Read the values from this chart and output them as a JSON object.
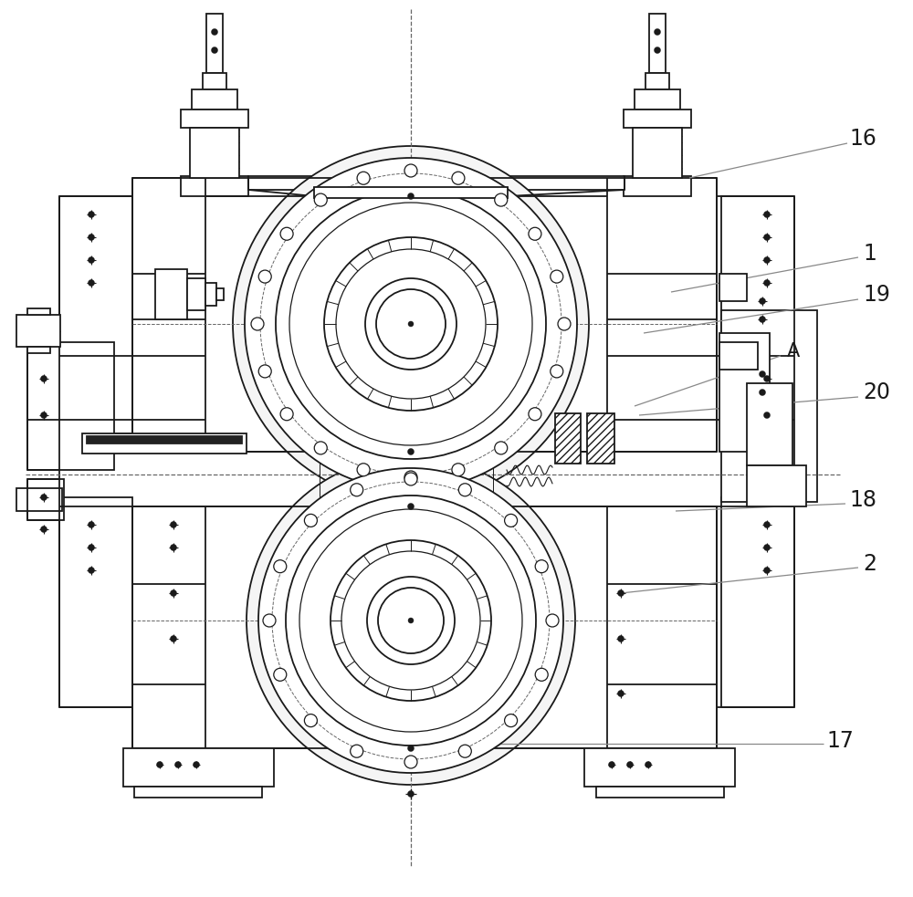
{
  "bg_color": "#ffffff",
  "lc": "#1a1a1a",
  "lw": 1.3,
  "tlw": 0.8,
  "clc": "#666666",
  "labels": [
    [
      "16",
      930,
      152,
      17
    ],
    [
      "1",
      945,
      278,
      17
    ],
    [
      "19",
      945,
      323,
      17
    ],
    [
      "A",
      862,
      385,
      15
    ],
    [
      "20",
      945,
      430,
      17
    ],
    [
      "18",
      930,
      548,
      17
    ],
    [
      "2",
      945,
      618,
      17
    ],
    [
      "17",
      905,
      812,
      17
    ]
  ],
  "ann_lines": [
    [
      928,
      157,
      755,
      195
    ],
    [
      940,
      282,
      735,
      320
    ],
    [
      940,
      328,
      705,
      365
    ],
    [
      855,
      390,
      695,
      445
    ],
    [
      940,
      435,
      700,
      455
    ],
    [
      926,
      552,
      740,
      560
    ],
    [
      940,
      622,
      680,
      650
    ],
    [
      902,
      815,
      535,
      815
    ]
  ]
}
